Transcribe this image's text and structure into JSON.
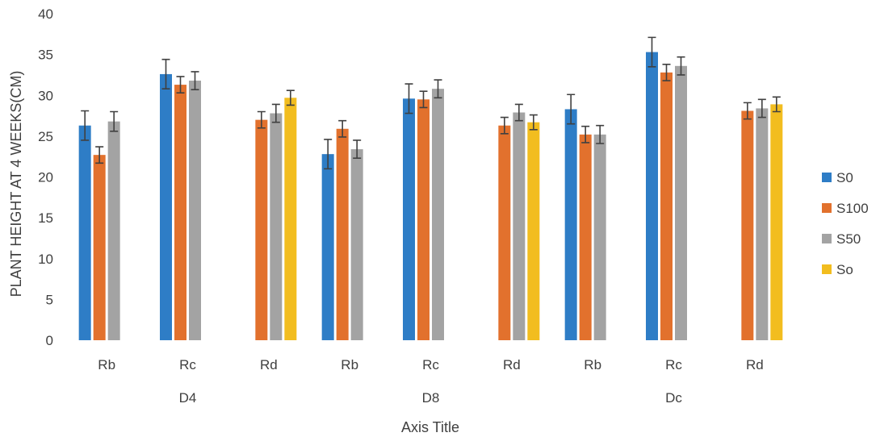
{
  "chart_data": {
    "type": "bar",
    "ylabel": "PLANT HEIGHT AT 4 WEEKS(CM)",
    "xlabel": "Axis Title",
    "ylim": [
      0,
      40
    ],
    "ytick_step": 5,
    "yticks": [
      "0",
      "5",
      "10",
      "15",
      "20",
      "25",
      "30",
      "35",
      "40"
    ],
    "grid": false,
    "legend_position": "right",
    "categories": [
      "Rb",
      "Rc",
      "Rd",
      "Rb",
      "Rc",
      "Rd",
      "Rb",
      "Rc",
      "Rd"
    ],
    "groups": [
      {
        "label": "D4",
        "span": [
          0,
          2
        ]
      },
      {
        "label": "D8",
        "span": [
          3,
          5
        ]
      },
      {
        "label": "Dc",
        "span": [
          6,
          8
        ]
      }
    ],
    "series": [
      {
        "name": "S0",
        "color": "#2e7dc6",
        "values": [
          26.3,
          32.6,
          null,
          22.8,
          29.6,
          null,
          28.3,
          35.3,
          null
        ],
        "errors": [
          1.8,
          1.8,
          null,
          1.8,
          1.8,
          null,
          1.8,
          1.8,
          null
        ]
      },
      {
        "name": "S100",
        "color": "#e2712d",
        "values": [
          22.7,
          31.3,
          27.0,
          25.9,
          29.5,
          26.3,
          25.2,
          32.8,
          28.1
        ],
        "errors": [
          1.0,
          1.0,
          1.0,
          1.0,
          1.0,
          1.0,
          1.0,
          1.0,
          1.0
        ]
      },
      {
        "name": "S50",
        "color": "#a3a3a3",
        "values": [
          26.8,
          31.8,
          27.8,
          23.4,
          30.8,
          27.9,
          25.2,
          33.6,
          28.4
        ],
        "errors": [
          1.2,
          1.1,
          1.1,
          1.1,
          1.1,
          1.0,
          1.1,
          1.1,
          1.1
        ]
      },
      {
        "name": "So",
        "color": "#f2bd1f",
        "values": [
          null,
          null,
          29.7,
          null,
          null,
          26.7,
          null,
          null,
          28.9
        ],
        "errors": [
          null,
          null,
          0.9,
          null,
          null,
          0.9,
          null,
          null,
          0.9
        ]
      }
    ]
  }
}
